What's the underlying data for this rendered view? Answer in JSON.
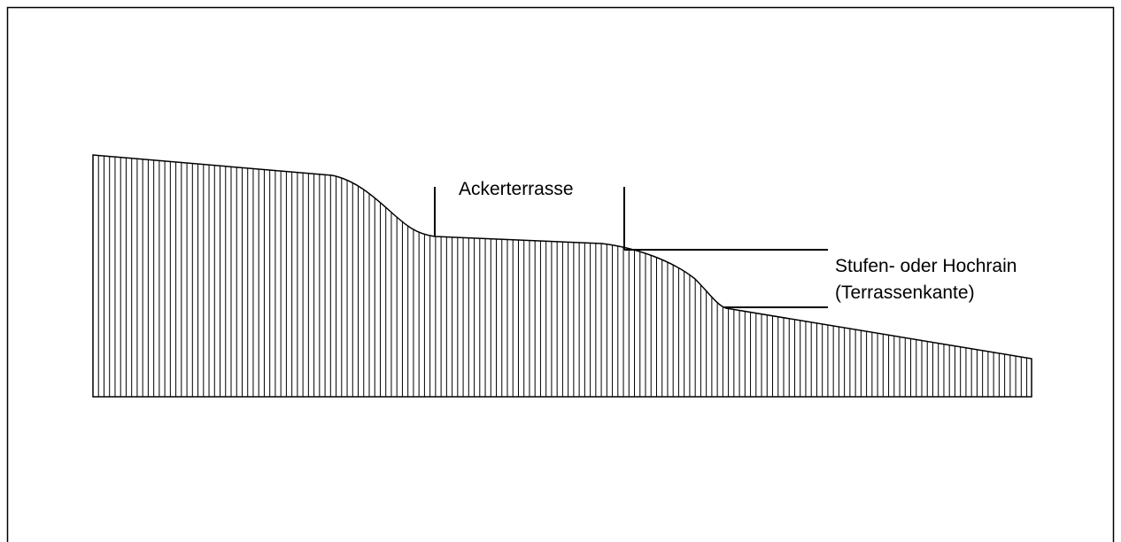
{
  "labels": {
    "terrace": "Ackerterrasse",
    "edge_line1": "Stufen- oder Hochrain",
    "edge_line2": "(Terrassenkante)"
  }
}
